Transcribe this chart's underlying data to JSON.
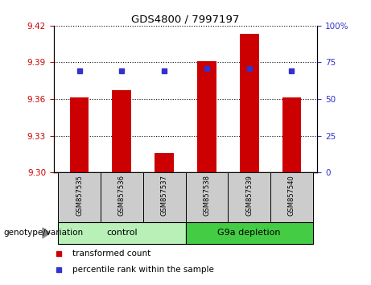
{
  "title": "GDS4800 / 7997197",
  "samples": [
    "GSM857535",
    "GSM857536",
    "GSM857537",
    "GSM857538",
    "GSM857539",
    "GSM857540"
  ],
  "bar_values": [
    9.361,
    9.367,
    9.316,
    9.391,
    9.413,
    9.361
  ],
  "blue_values": [
    9.383,
    9.383,
    9.383,
    9.385,
    9.385,
    9.383
  ],
  "bar_color": "#cc0000",
  "blue_color": "#3333cc",
  "ymin": 9.3,
  "ymax": 9.42,
  "yticks_left": [
    9.3,
    9.33,
    9.36,
    9.39,
    9.42
  ],
  "yticks_right": [
    0,
    25,
    50,
    75,
    100
  ],
  "groups": [
    {
      "label": "control",
      "indices": [
        0,
        1,
        2
      ],
      "light_color": "#ccffcc",
      "dark_color": "#ccffcc"
    },
    {
      "label": "G9a depletion",
      "indices": [
        3,
        4,
        5
      ],
      "light_color": "#44dd44",
      "dark_color": "#44dd44"
    }
  ],
  "group_label": "genotype/variation",
  "legend_bar_label": "transformed count",
  "legend_blue_label": "percentile rank within the sample",
  "bar_width": 0.45,
  "baseline": 9.3,
  "sample_box_color": "#cccccc",
  "control_color": "#b8f0b8",
  "depletion_color": "#44cc44"
}
